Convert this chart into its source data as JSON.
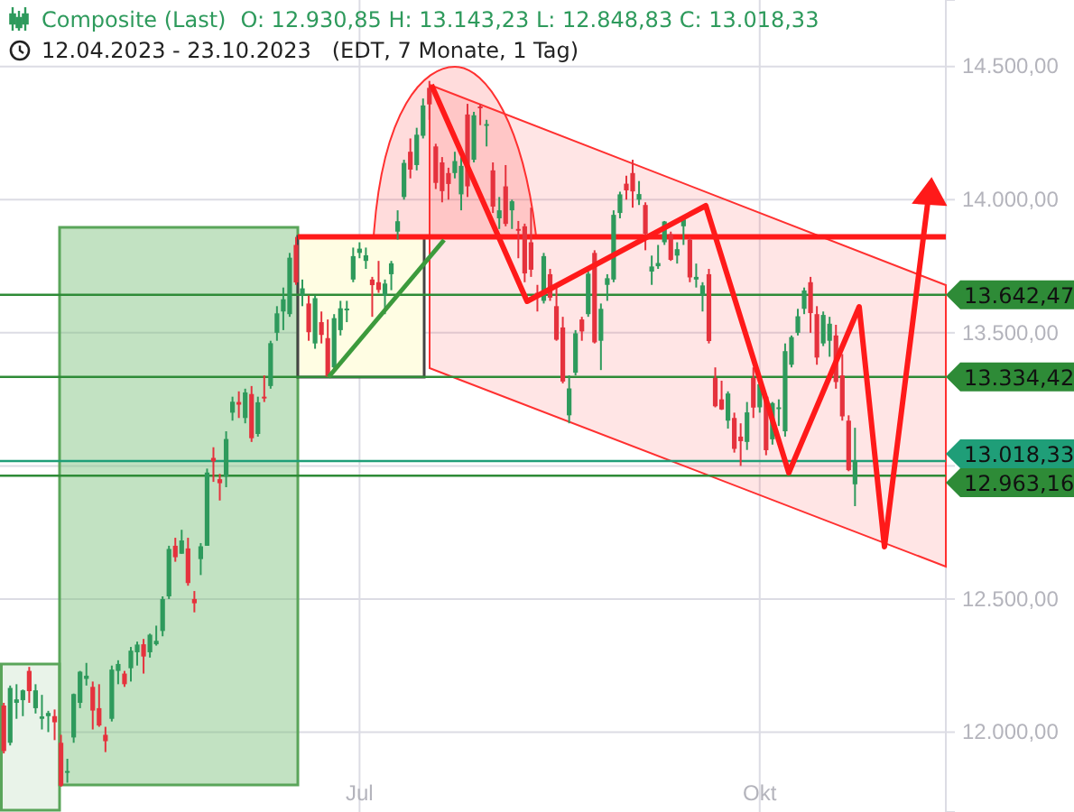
{
  "chart_data": {
    "type": "candlestick",
    "title": "Composite (Last)",
    "subtitle": "12.04.2023 - 23.10.2023   (EDT, 7 Monate, 1 Tag)",
    "annotations": [
      "O: 12.930,85  H: 13.143,23  L: 12.848,83  C: 13.018,33"
    ],
    "categories": [
      null,
      null,
      null,
      null,
      null,
      null,
      null,
      null,
      null,
      null,
      null,
      null,
      null,
      null,
      null,
      null,
      null,
      null,
      null,
      null,
      null,
      null,
      null,
      null,
      null,
      null,
      null,
      null,
      null,
      null,
      null,
      null,
      null,
      null,
      null,
      null,
      null,
      null,
      null,
      null,
      null,
      null,
      null,
      null,
      null,
      null,
      null,
      null,
      null,
      null,
      null,
      null,
      null,
      null,
      null,
      null,
      "Jul",
      null,
      null,
      null,
      null,
      null,
      null,
      null,
      null,
      null,
      null,
      null,
      null,
      null,
      null,
      null,
      null,
      null,
      null,
      null,
      null,
      null,
      null,
      null,
      null,
      null,
      null,
      null,
      null,
      null,
      null,
      null,
      null,
      null,
      null,
      null,
      null,
      null,
      null,
      null,
      null,
      null,
      null,
      null,
      null,
      null,
      null,
      null,
      null,
      null,
      null,
      null,
      null,
      null,
      null,
      null,
      null,
      null,
      null,
      null,
      null,
      null,
      null,
      "Okt",
      null,
      null,
      null,
      null,
      null,
      null,
      null,
      null,
      null,
      null,
      null,
      null,
      null,
      null,
      null
    ],
    "ohlc": [
      [
        12100,
        12110,
        11920,
        11929
      ],
      [
        11960,
        12175,
        11950,
        12166
      ],
      [
        12110,
        12180,
        12050,
        12123
      ],
      [
        12120,
        12160,
        12060,
        12157
      ],
      [
        12230,
        12245,
        12110,
        12154
      ],
      [
        12090,
        12180,
        12070,
        12157
      ],
      [
        12050,
        12140,
        12010,
        12059
      ],
      [
        12060,
        12080,
        12000,
        12072
      ],
      [
        12060,
        12085,
        11970,
        12037
      ],
      [
        11960,
        11990,
        11795,
        11799
      ],
      [
        11850,
        11900,
        11810,
        11854
      ],
      [
        11980,
        12145,
        11960,
        12143
      ],
      [
        12110,
        12230,
        12090,
        12227
      ],
      [
        12200,
        12260,
        12175,
        12212
      ],
      [
        12170,
        12190,
        12010,
        12081
      ],
      [
        12090,
        12180,
        12020,
        12025
      ],
      [
        11990,
        12020,
        11925,
        11966
      ],
      [
        12050,
        12250,
        12040,
        12235
      ],
      [
        12230,
        12270,
        12180,
        12256
      ],
      [
        12220,
        12230,
        12170,
        12180
      ],
      [
        12240,
        12320,
        12190,
        12306
      ],
      [
        12300,
        12340,
        12250,
        12329
      ],
      [
        12330,
        12350,
        12220,
        12284
      ],
      [
        12300,
        12370,
        12280,
        12366
      ],
      [
        12330,
        12400,
        12325,
        12343
      ],
      [
        12380,
        12510,
        12360,
        12500
      ],
      [
        12510,
        12700,
        12500,
        12688
      ],
      [
        12700,
        12730,
        12640,
        12657
      ],
      [
        12670,
        12760,
        12670,
        12720
      ],
      [
        12690,
        12730,
        12550,
        12560
      ],
      [
        12500,
        12530,
        12450,
        12484
      ],
      [
        12650,
        12710,
        12590,
        12698
      ],
      [
        12700,
        12990,
        12700,
        12975
      ],
      [
        13030,
        13070,
        12940,
        13017
      ],
      [
        12950,
        12970,
        12870,
        12935
      ],
      [
        12960,
        13130,
        12920,
        13101
      ],
      [
        13200,
        13260,
        13170,
        13241
      ],
      [
        13240,
        13280,
        13180,
        13230
      ],
      [
        13180,
        13290,
        13160,
        13276
      ],
      [
        13270,
        13300,
        13090,
        13104
      ],
      [
        13120,
        13260,
        13110,
        13239
      ],
      [
        13260,
        13340,
        13240,
        13259
      ],
      [
        13300,
        13470,
        13290,
        13461
      ],
      [
        13500,
        13600,
        13470,
        13573
      ],
      [
        13580,
        13670,
        13510,
        13626
      ],
      [
        13570,
        13800,
        13560,
        13782
      ],
      [
        13830,
        13860,
        13680,
        13689
      ],
      [
        13640,
        13700,
        13600,
        13667
      ],
      [
        13610,
        13640,
        13470,
        13502
      ],
      [
        13460,
        13640,
        13440,
        13630
      ],
      [
        13540,
        13580,
        13460,
        13492
      ],
      [
        13480,
        13550,
        13334,
        13336
      ],
      [
        13370,
        13570,
        13360,
        13555
      ],
      [
        13510,
        13620,
        13490,
        13592
      ],
      [
        13590,
        13620,
        13540,
        13591
      ],
      [
        13700,
        13820,
        13690,
        13788
      ],
      [
        13800,
        13840,
        13780,
        13816
      ],
      [
        13770,
        13820,
        13740,
        13791
      ],
      [
        13700,
        13710,
        13560,
        13679
      ],
      [
        13690,
        13770,
        13650,
        13661
      ],
      [
        13640,
        13700,
        13570,
        13685
      ],
      [
        13720,
        13770,
        13660,
        13761
      ],
      [
        13880,
        13960,
        13850,
        13919
      ],
      [
        14010,
        14150,
        14000,
        14138
      ],
      [
        14180,
        14230,
        14080,
        14113
      ],
      [
        14130,
        14270,
        14110,
        14244
      ],
      [
        14240,
        14380,
        14230,
        14354
      ],
      [
        14420,
        14446,
        14300,
        14358
      ],
      [
        14200,
        14210,
        14040,
        14063
      ],
      [
        14140,
        14160,
        13990,
        14032
      ],
      [
        14100,
        14120,
        14000,
        14059
      ],
      [
        14100,
        14180,
        14080,
        14145
      ],
      [
        14020,
        14160,
        13960,
        14127
      ],
      [
        14320,
        14360,
        14010,
        14050
      ],
      [
        14150,
        14330,
        14140,
        14317
      ],
      [
        14350,
        14360,
        14280,
        14346
      ],
      [
        14280,
        14300,
        14200,
        14284
      ],
      [
        14110,
        14140,
        13950,
        13974
      ],
      [
        13930,
        14010,
        13890,
        13960
      ],
      [
        14050,
        14130,
        13900,
        13909
      ],
      [
        13960,
        14000,
        13890,
        13994
      ],
      [
        13890,
        13920,
        13780,
        13885
      ],
      [
        13900,
        13910,
        13690,
        13723
      ],
      [
        13840,
        13970,
        13710,
        13737
      ],
      [
        13650,
        13680,
        13580,
        13645
      ],
      [
        13620,
        13800,
        13610,
        13788
      ],
      [
        13720,
        13740,
        13620,
        13632
      ],
      [
        13600,
        13680,
        13470,
        13474
      ],
      [
        13520,
        13560,
        13310,
        13317
      ],
      [
        13190,
        13340,
        13160,
        13291
      ],
      [
        13350,
        13510,
        13340,
        13498
      ],
      [
        13550,
        13560,
        13470,
        13505
      ],
      [
        13570,
        13730,
        13560,
        13722
      ],
      [
        13800,
        13810,
        13460,
        13464
      ],
      [
        13470,
        13610,
        13360,
        13590
      ],
      [
        13680,
        13720,
        13620,
        13705
      ],
      [
        13700,
        13960,
        13690,
        13943
      ],
      [
        13950,
        14030,
        13930,
        14020
      ],
      [
        14060,
        14090,
        14000,
        14035
      ],
      [
        14100,
        14150,
        13970,
        14031
      ],
      [
        14000,
        14070,
        13980,
        14021
      ],
      [
        13980,
        13990,
        13810,
        13872
      ],
      [
        13730,
        13790,
        13680,
        13749
      ],
      [
        13750,
        13830,
        13740,
        13762
      ],
      [
        13840,
        13920,
        13830,
        13918
      ],
      [
        13870,
        13880,
        13770,
        13774
      ],
      [
        13790,
        13840,
        13760,
        13814
      ],
      [
        13900,
        13940,
        13830,
        13926
      ],
      [
        13850,
        13860,
        13690,
        13708
      ],
      [
        13700,
        13760,
        13670,
        13710
      ],
      [
        13640,
        13690,
        13580,
        13678
      ],
      [
        13720,
        13740,
        13460,
        13469
      ],
      [
        13330,
        13370,
        13220,
        13224
      ],
      [
        13250,
        13320,
        13210,
        13212
      ],
      [
        13170,
        13280,
        13140,
        13272
      ],
      [
        13180,
        13200,
        13050,
        13064
      ],
      [
        13110,
        13160,
        13000,
        13093
      ],
      [
        13090,
        13240,
        13060,
        13201
      ],
      [
        13330,
        13370,
        13180,
        13219
      ],
      [
        13220,
        13330,
        13200,
        13307
      ],
      [
        13260,
        13270,
        13040,
        13059
      ],
      [
        13100,
        13240,
        13080,
        13236
      ],
      [
        13220,
        13250,
        13150,
        13220
      ],
      [
        13130,
        13460,
        13110,
        13431
      ],
      [
        13380,
        13490,
        13370,
        13484
      ],
      [
        13500,
        13590,
        13490,
        13562
      ],
      [
        13590,
        13670,
        13570,
        13659
      ],
      [
        13690,
        13710,
        13500,
        13574
      ],
      [
        13570,
        13600,
        13380,
        13407
      ],
      [
        13460,
        13580,
        13450,
        13567
      ],
      [
        13470,
        13560,
        13410,
        13534
      ],
      [
        13490,
        13530,
        13290,
        13315
      ],
      [
        13340,
        13420,
        13170,
        13186
      ],
      [
        13170,
        13190,
        12980,
        12984
      ],
      [
        12930.85,
        13143.23,
        12848.83,
        13018.33
      ]
    ],
    "ylim": [
      11700,
      14750
    ],
    "yticks": [
      {
        "value": 12000,
        "label": "12.000,00"
      },
      {
        "value": 12500,
        "label": "12.500,00"
      },
      {
        "value": 13000,
        "label": null
      },
      {
        "value": 13500,
        "label": "13.500,00"
      },
      {
        "value": 14000,
        "label": "14.000,00"
      },
      {
        "value": 14500,
        "label": "14.500,00"
      }
    ],
    "grid": true,
    "ref_lines": [
      {
        "axis": "y",
        "value": 13860,
        "label": null,
        "color": "#ff1a1a"
      },
      {
        "axis": "y",
        "value": 13642.47,
        "label": "13.642,47",
        "color": "#2e8b37"
      },
      {
        "axis": "y",
        "value": 13334.42,
        "label": "13.334,42",
        "color": "#2e8b37"
      },
      {
        "axis": "y",
        "value": 13018.33,
        "label": "13.018,33",
        "color": "#1f9e78"
      },
      {
        "axis": "y",
        "value": 12963.16,
        "label": "12.963,16",
        "color": "#2e8b37"
      }
    ]
  }
}
